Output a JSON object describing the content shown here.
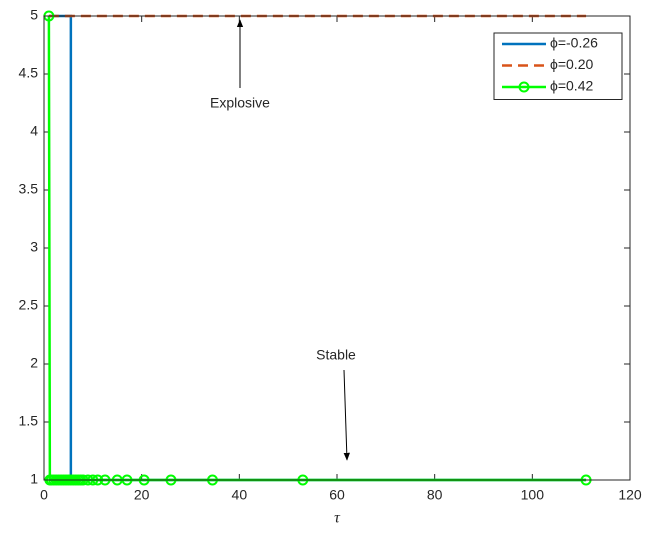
{
  "chart_data": {
    "type": "line",
    "xlabel": "τ",
    "xlim": [
      0,
      120
    ],
    "xticks": [
      0,
      20,
      40,
      60,
      80,
      100,
      120
    ],
    "ylim": [
      1,
      5
    ],
    "yticks": [
      1,
      1.5,
      2,
      2.5,
      3,
      3.5,
      4,
      4.5,
      5
    ],
    "grid": false,
    "legend": "upper right",
    "annotations": [
      "Explosive",
      "Stable"
    ],
    "series": [
      {
        "name": "ϕ=-0.26",
        "color": "#0072bd",
        "style": "solid",
        "x": [
          1,
          5.5,
          5.5,
          111
        ],
        "values": [
          5,
          5,
          1,
          1
        ]
      },
      {
        "name": "ϕ=0.20",
        "color": "#d95319",
        "style": "dashed",
        "x": [
          1,
          111
        ],
        "values": [
          5,
          5
        ]
      },
      {
        "name": "ϕ=0.42",
        "color": "#00ff00",
        "style": "solid",
        "marker": "circle",
        "x": [
          1,
          1.2,
          1.5,
          2,
          2.5,
          3,
          3.5,
          4,
          4.5,
          5,
          5.5,
          6,
          6.5,
          7,
          7.5,
          8,
          9,
          10,
          11,
          12.5,
          15,
          17,
          20.5,
          26,
          34.5,
          53,
          111
        ],
        "values": [
          5,
          1,
          1,
          1,
          1,
          1,
          1,
          1,
          1,
          1,
          1,
          1,
          1,
          1,
          1,
          1,
          1,
          1,
          1,
          1,
          1,
          1,
          1,
          1,
          1,
          1,
          1
        ]
      }
    ]
  }
}
